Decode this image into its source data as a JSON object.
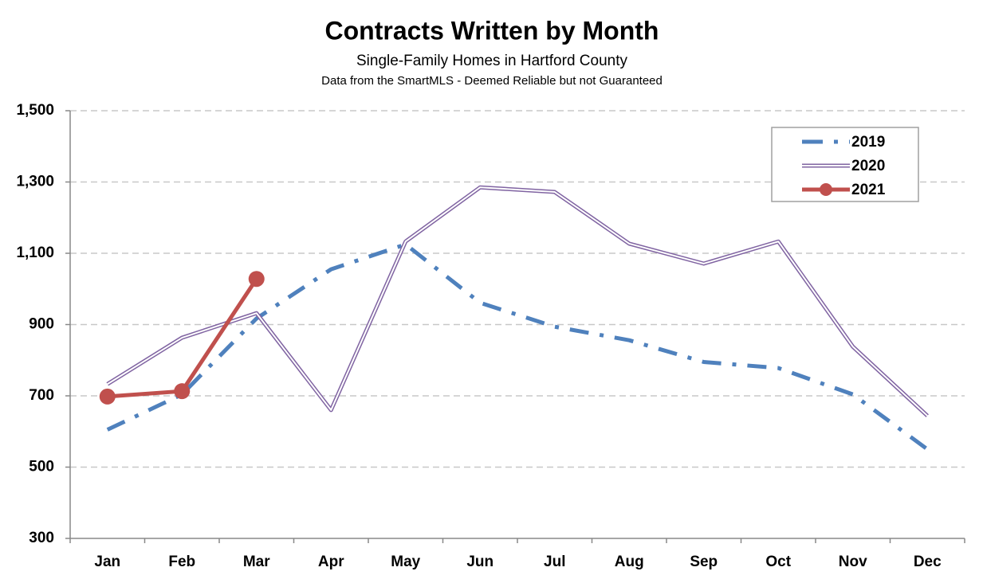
{
  "chart_data": {
    "type": "line",
    "title": "Contracts Written by Month",
    "subtitle": "Single-Family Homes in Hartford County",
    "note": "Data from the SmartMLS - Deemed Reliable but not Guaranteed",
    "categories": [
      "Jan",
      "Feb",
      "Mar",
      "Apr",
      "May",
      "Jun",
      "Jul",
      "Aug",
      "Sep",
      "Oct",
      "Nov",
      "Dec"
    ],
    "series": [
      {
        "name": "2019",
        "color": "#4f81bd",
        "style": "dashdot",
        "markers": false,
        "values": [
          605,
          704,
          917,
          1055,
          1125,
          961,
          894,
          856,
          795,
          778,
          704,
          550
        ]
      },
      {
        "name": "2020",
        "color": "#8064a2",
        "style": "double",
        "markers": false,
        "values": [
          733,
          863,
          932,
          660,
          1133,
          1285,
          1272,
          1127,
          1071,
          1133,
          838,
          644
        ]
      },
      {
        "name": "2021",
        "color": "#c0504d",
        "style": "solid",
        "markers": true,
        "values": [
          698,
          713,
          1028,
          null,
          null,
          null,
          null,
          null,
          null,
          null,
          null,
          null
        ]
      }
    ],
    "ylim": [
      300,
      1500
    ],
    "yticks": [
      300,
      500,
      700,
      900,
      {
        "value": 1100,
        "label": "1,100"
      },
      {
        "value": 1300,
        "label": "1,300"
      },
      {
        "value": 1500,
        "label": "1,500"
      }
    ],
    "grid": true,
    "legend": "top-right"
  }
}
